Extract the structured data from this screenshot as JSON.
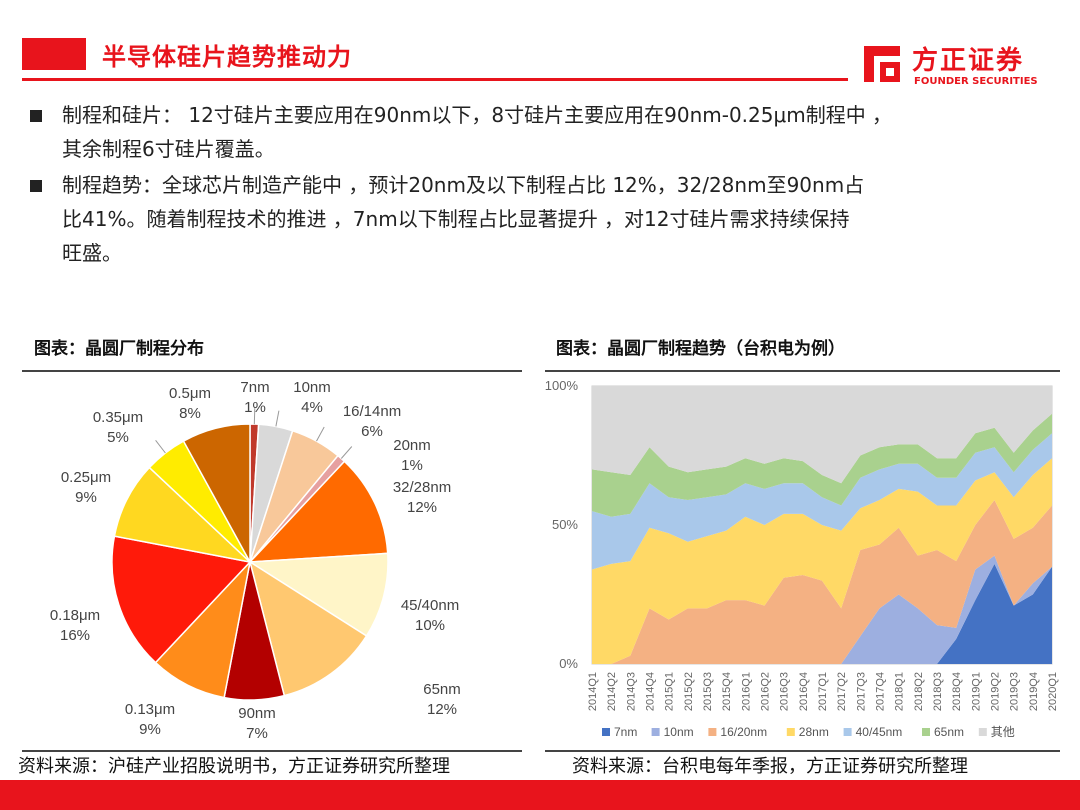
{
  "header": {
    "title": "半导体硅片趋势推动力",
    "logo_cn": "方正证券",
    "logo_en": "FOUNDER SECURITIES",
    "accent_color": "#e8141c"
  },
  "bullets": [
    {
      "line1": "制程和硅片： 12寸硅片主要应用在90nm以下，8寸硅片主要应用在90nm-0.25μm制程中 ，",
      "line2": "其余制程6寸硅片覆盖。"
    },
    {
      "line1": "制程趋势：全球芯片制造产能中 ，预计20nm及以下制程占比 12%，32/28nm至90nm占",
      "line2": "比41%。随着制程技术的推进 ，7nm以下制程占比显著提升 ，对12寸硅片需求持续保持",
      "line3": "旺盛。"
    }
  ],
  "left_panel": {
    "title": "图表：晶圆厂制程分布",
    "source": "资料来源：沪硅产业招股说明书，方正证券研究所整理"
  },
  "right_panel": {
    "title": "图表：晶圆厂制程趋势（台积电为例）",
    "source": "资料来源：台积电每年季报，方正证券研究所整理"
  },
  "chart_data": [
    {
      "type": "pie",
      "slices": [
        {
          "label": "7nm",
          "value": 1,
          "value_label": "1%",
          "color": "#c0392b"
        },
        {
          "label": "10nm",
          "value": 4,
          "value_label": "4%",
          "color": "#d9d9d9"
        },
        {
          "label": "16/14nm",
          "value": 6,
          "value_label": "6%",
          "color": "#f8c89a"
        },
        {
          "label": "20nm",
          "value": 1,
          "value_label": "1%",
          "color": "#e6a0a0"
        },
        {
          "label": "32/28nm",
          "value": 12,
          "value_label": "12%",
          "color": "#ff6a00"
        },
        {
          "label": "45/40nm",
          "value": 10,
          "value_label": "10%",
          "color": "#fff5c8"
        },
        {
          "label": "65nm",
          "value": 12,
          "value_label": "12%",
          "color": "#ffc870"
        },
        {
          "label": "90nm",
          "value": 7,
          "value_label": "7%",
          "color": "#b30000"
        },
        {
          "label": "0.13μm",
          "value": 9,
          "value_label": "9%",
          "color": "#ff8c1a"
        },
        {
          "label": "0.18μm",
          "value": 16,
          "value_label": "16%",
          "color": "#ff1a0a"
        },
        {
          "label": "0.25μm",
          "value": 9,
          "value_label": "9%",
          "color": "#ffd820"
        },
        {
          "label": "0.35μm",
          "value": 5,
          "value_label": "5%",
          "color": "#ffec00"
        },
        {
          "label": "0.5μm",
          "value": 8,
          "value_label": "8%",
          "color": "#cc6600"
        }
      ]
    },
    {
      "type": "area",
      "stacked": true,
      "ylim": [
        0,
        100
      ],
      "yticks": [
        "0%",
        "50%",
        "100%"
      ],
      "x": [
        "2014Q1",
        "2014Q2",
        "2014Q3",
        "2014Q4",
        "2015Q1",
        "2015Q2",
        "2015Q3",
        "2015Q4",
        "2016Q1",
        "2016Q2",
        "2016Q3",
        "2016Q4",
        "2017Q1",
        "2017Q2",
        "2017Q3",
        "2017Q4",
        "2018Q1",
        "2018Q2",
        "2018Q3",
        "2018Q4",
        "2019Q1",
        "2019Q2",
        "2019Q3",
        "2019Q4",
        "2020Q1"
      ],
      "legend_position": "bottom",
      "series": [
        {
          "name": "7nm",
          "color": "#4472c4",
          "values": [
            0,
            0,
            0,
            0,
            0,
            0,
            0,
            0,
            0,
            0,
            0,
            0,
            0,
            0,
            0,
            0,
            0,
            0,
            0,
            9,
            23,
            36,
            21,
            25,
            35
          ]
        },
        {
          "name": "10nm",
          "color": "#9dafe0",
          "values": [
            0,
            0,
            0,
            0,
            0,
            0,
            0,
            0,
            0,
            0,
            0,
            0,
            0,
            0,
            10,
            20,
            25,
            20,
            14,
            4,
            11,
            3,
            0,
            4,
            0
          ]
        },
        {
          "name": "16/20nm",
          "color": "#f4b183",
          "values": [
            0,
            0,
            3,
            20,
            16,
            20,
            20,
            23,
            23,
            21,
            31,
            32,
            30,
            20,
            31,
            23,
            24,
            19,
            27,
            24,
            16,
            20,
            24,
            20,
            22
          ]
        },
        {
          "name": "28nm",
          "color": "#ffd966",
          "values": [
            34,
            36,
            34,
            29,
            31,
            24,
            26,
            25,
            30,
            29,
            23,
            22,
            20,
            28,
            15,
            16,
            14,
            23,
            16,
            20,
            16,
            10,
            15,
            19,
            17
          ]
        },
        {
          "name": "40/45nm",
          "color": "#a9c8ea",
          "values": [
            21,
            17,
            17,
            16,
            13,
            15,
            14,
            13,
            12,
            13,
            11,
            11,
            10,
            9,
            11,
            11,
            9,
            10,
            10,
            10,
            10,
            9,
            9,
            9,
            9
          ]
        },
        {
          "name": "65nm",
          "color": "#a9d18e",
          "values": [
            15,
            16,
            14,
            13,
            11,
            10,
            10,
            10,
            9,
            9,
            9,
            8,
            8,
            8,
            8,
            8,
            7,
            7,
            7,
            7,
            7,
            7,
            7,
            7,
            7
          ]
        },
        {
          "name": "其他",
          "color": "#d9d9d9",
          "values": [
            30,
            31,
            32,
            22,
            29,
            35,
            30,
            29,
            26,
            28,
            26,
            27,
            32,
            35,
            25,
            22,
            21,
            21,
            26,
            26,
            17,
            15,
            24,
            16,
            10
          ]
        }
      ]
    }
  ]
}
